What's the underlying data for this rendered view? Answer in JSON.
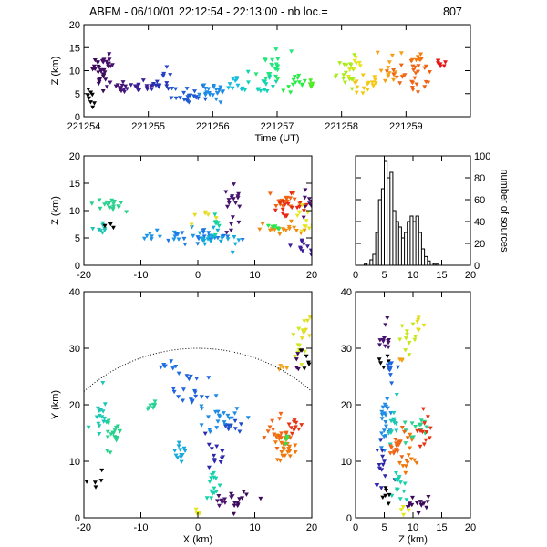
{
  "title_text": "ABFM - 06/10/01 22:12:54 - 22:13:00 - nb loc.=",
  "title_count": "807",
  "chart_data": [
    {
      "id": "time_height",
      "type": "scatter",
      "xlabel": "Time (UT)",
      "ylabel": "Z (km)",
      "xlim": [
        221254,
        221260
      ],
      "ylim": [
        0,
        20
      ],
      "xticks": [
        {
          "v": 221254,
          "label": "221254"
        },
        {
          "v": 221255,
          "label": "221255"
        },
        {
          "v": 221256,
          "label": "221256"
        },
        {
          "v": 221257,
          "label": "221257"
        },
        {
          "v": 221258,
          "label": "221258"
        },
        {
          "v": 221259,
          "label": "221259"
        }
      ],
      "yticks": [
        0,
        5,
        10,
        15,
        20
      ],
      "clusters": [
        {
          "x": 221254.25,
          "y": 10.0,
          "sx": 0.05,
          "sy": 1.8,
          "n": 24,
          "color": "#3c0a5a"
        },
        {
          "x": 221254.1,
          "y": 4.0,
          "sx": 0.03,
          "sy": 1.2,
          "n": 8,
          "color": "#000000"
        },
        {
          "x": 221254.35,
          "y": 11.5,
          "sx": 0.05,
          "sy": 1.0,
          "n": 14,
          "color": "#46106a"
        },
        {
          "x": 221254.55,
          "y": 6.5,
          "sx": 0.1,
          "sy": 0.8,
          "n": 14,
          "color": "#461478"
        },
        {
          "x": 221254.85,
          "y": 6.5,
          "sx": 0.12,
          "sy": 0.6,
          "n": 14,
          "color": "#3c1e96"
        },
        {
          "x": 221255.1,
          "y": 6.0,
          "sx": 0.08,
          "sy": 1.0,
          "n": 10,
          "color": "#2332b4"
        },
        {
          "x": 221255.25,
          "y": 9.5,
          "sx": 0.04,
          "sy": 0.6,
          "n": 5,
          "color": "#2840c8"
        },
        {
          "x": 221255.6,
          "y": 4.5,
          "sx": 0.15,
          "sy": 0.8,
          "n": 22,
          "color": "#1e5ad2"
        },
        {
          "x": 221255.95,
          "y": 5.5,
          "sx": 0.12,
          "sy": 1.0,
          "n": 22,
          "color": "#1e8ce6"
        },
        {
          "x": 221256.35,
          "y": 7.0,
          "sx": 0.1,
          "sy": 1.0,
          "n": 10,
          "color": "#14bedc"
        },
        {
          "x": 221256.75,
          "y": 7.5,
          "sx": 0.12,
          "sy": 1.2,
          "n": 16,
          "color": "#14d2b4"
        },
        {
          "x": 221256.95,
          "y": 10.5,
          "sx": 0.1,
          "sy": 1.5,
          "n": 18,
          "color": "#1ee678"
        },
        {
          "x": 221257.25,
          "y": 7.5,
          "sx": 0.15,
          "sy": 1.3,
          "n": 14,
          "color": "#28eb46"
        },
        {
          "x": 221257.55,
          "y": 7.0,
          "sx": 0.04,
          "sy": 0.5,
          "n": 5,
          "color": "#50eb28"
        },
        {
          "x": 221258.1,
          "y": 9.5,
          "sx": 0.1,
          "sy": 1.8,
          "n": 18,
          "color": "#aaeb1e"
        },
        {
          "x": 221258.25,
          "y": 11.0,
          "sx": 0.08,
          "sy": 1.0,
          "n": 8,
          "color": "#e6e61e"
        },
        {
          "x": 221258.4,
          "y": 7.0,
          "sx": 0.15,
          "sy": 1.0,
          "n": 16,
          "color": "#f5c814"
        },
        {
          "x": 221258.75,
          "y": 10.0,
          "sx": 0.1,
          "sy": 2.0,
          "n": 14,
          "color": "#f5a014"
        },
        {
          "x": 221259.1,
          "y": 9.0,
          "sx": 0.15,
          "sy": 2.2,
          "n": 30,
          "color": "#f06414"
        },
        {
          "x": 221259.2,
          "y": 12.5,
          "sx": 0.05,
          "sy": 0.6,
          "n": 6,
          "color": "#f5780a"
        },
        {
          "x": 221259.55,
          "y": 12.0,
          "sx": 0.08,
          "sy": 0.6,
          "n": 7,
          "color": "#e61414"
        }
      ]
    },
    {
      "id": "x_height",
      "type": "scatter",
      "xlabel": "",
      "ylabel": "Z (km)",
      "xlim": [
        -20,
        20
      ],
      "ylim": [
        0,
        20
      ],
      "xticks": [
        {
          "v": -20,
          "label": "-20"
        },
        {
          "v": -10,
          "label": "-10"
        },
        {
          "v": 0,
          "label": "0"
        },
        {
          "v": 10,
          "label": "10"
        },
        {
          "v": 20,
          "label": "20"
        }
      ],
      "yticks": [
        0,
        5,
        10,
        15,
        20
      ],
      "clusters": [
        {
          "x": -16.0,
          "y": 11.0,
          "sx": 1.5,
          "sy": 0.8,
          "n": 18,
          "color": "#28d28c"
        },
        {
          "x": -17.0,
          "y": 6.5,
          "sx": 1.0,
          "sy": 0.6,
          "n": 8,
          "color": "#1ec3b4"
        },
        {
          "x": -15.0,
          "y": 7.0,
          "sx": 0.6,
          "sy": 0.4,
          "n": 4,
          "color": "#000000"
        },
        {
          "x": -6.0,
          "y": 5.5,
          "sx": 3.0,
          "sy": 0.6,
          "n": 14,
          "color": "#1e96e6"
        },
        {
          "x": 0.0,
          "y": 5.0,
          "sx": 3.0,
          "sy": 0.6,
          "n": 24,
          "color": "#1e78e6"
        },
        {
          "x": 3.0,
          "y": 4.5,
          "sx": 2.0,
          "sy": 0.8,
          "n": 22,
          "color": "#14aadc"
        },
        {
          "x": 1.5,
          "y": 9.0,
          "sx": 0.8,
          "sy": 0.6,
          "n": 6,
          "color": "#e6dc1e"
        },
        {
          "x": 3.0,
          "y": 7.5,
          "sx": 0.5,
          "sy": 1.0,
          "n": 8,
          "color": "#14d2a0"
        },
        {
          "x": 6.0,
          "y": 10.5,
          "sx": 0.8,
          "sy": 2.0,
          "n": 18,
          "color": "#46146e"
        },
        {
          "x": 14.5,
          "y": 12.0,
          "sx": 1.5,
          "sy": 0.6,
          "n": 18,
          "color": "#f06414"
        },
        {
          "x": 16.5,
          "y": 10.0,
          "sx": 1.8,
          "sy": 1.2,
          "n": 18,
          "color": "#e62814"
        },
        {
          "x": 15.5,
          "y": 6.5,
          "sx": 2.0,
          "sy": 0.6,
          "n": 18,
          "color": "#f08c14"
        },
        {
          "x": 18.5,
          "y": 8.0,
          "sx": 0.8,
          "sy": 1.5,
          "n": 12,
          "color": "#e6e61e"
        },
        {
          "x": 18.5,
          "y": 3.5,
          "sx": 1.0,
          "sy": 0.6,
          "n": 10,
          "color": "#3c1e96"
        },
        {
          "x": 19.0,
          "y": 11.0,
          "sx": 0.5,
          "sy": 1.5,
          "n": 8,
          "color": "#46106a"
        },
        {
          "x": 13.0,
          "y": 6.5,
          "sx": 0.6,
          "sy": 0.6,
          "n": 6,
          "color": "#28e650"
        }
      ]
    },
    {
      "id": "height_histogram",
      "type": "bar",
      "xlabel": "",
      "ylabel": "number of sources",
      "xlim": [
        0,
        20
      ],
      "ylim": [
        0,
        100
      ],
      "bin_width": 0.5,
      "xticks": [
        {
          "v": 0,
          "label": "0"
        },
        {
          "v": 5,
          "label": "5"
        },
        {
          "v": 10,
          "label": "10"
        },
        {
          "v": 15,
          "label": "15"
        },
        {
          "v": 20,
          "label": "20"
        }
      ],
      "yticks": [
        0,
        20,
        40,
        60,
        80,
        100
      ],
      "bins_start": [
        1.5,
        2.0,
        2.5,
        3.0,
        3.5,
        4.0,
        4.5,
        5.0,
        5.5,
        6.0,
        6.5,
        7.0,
        7.5,
        8.0,
        8.5,
        9.0,
        9.5,
        10.0,
        10.5,
        11.0,
        11.5,
        12.0,
        12.5,
        13.0,
        13.5,
        14.0
      ],
      "counts": [
        1,
        2,
        5,
        10,
        30,
        60,
        70,
        95,
        80,
        85,
        50,
        40,
        35,
        25,
        30,
        40,
        45,
        40,
        45,
        30,
        15,
        8,
        4,
        2,
        1,
        1
      ]
    },
    {
      "id": "plan_view",
      "type": "scatter",
      "xlabel": "X (km)",
      "ylabel": "Y (km)",
      "xlim": [
        -20,
        20
      ],
      "ylim": [
        0,
        40
      ],
      "xticks": [
        {
          "v": -20,
          "label": "-20"
        },
        {
          "v": -10,
          "label": "-10"
        },
        {
          "v": 0,
          "label": "0"
        },
        {
          "v": 10,
          "label": "10"
        },
        {
          "v": 20,
          "label": "20"
        }
      ],
      "yticks": [
        0,
        10,
        20,
        30,
        40
      ],
      "range_arc_radius": 30,
      "clusters": [
        {
          "x": -17.0,
          "y": 18.0,
          "sx": 0.8,
          "sy": 2.0,
          "n": 16,
          "color": "#1ec8b4"
        },
        {
          "x": -15.0,
          "y": 15.0,
          "sx": 1.0,
          "sy": 1.5,
          "n": 18,
          "color": "#28d28c"
        },
        {
          "x": -8.0,
          "y": 19.5,
          "sx": 0.6,
          "sy": 0.6,
          "n": 8,
          "color": "#28d296"
        },
        {
          "x": -18.0,
          "y": 7.0,
          "sx": 1.0,
          "sy": 1.0,
          "n": 5,
          "color": "#000000"
        },
        {
          "x": -5.0,
          "y": 26.5,
          "sx": 0.8,
          "sy": 0.8,
          "n": 8,
          "color": "#1e6ee6"
        },
        {
          "x": -1.0,
          "y": 22.0,
          "sx": 1.5,
          "sy": 1.5,
          "n": 18,
          "color": "#1e64dc"
        },
        {
          "x": 4.0,
          "y": 18.0,
          "sx": 2.0,
          "sy": 1.2,
          "n": 22,
          "color": "#1e8ce6"
        },
        {
          "x": -3.0,
          "y": 13.0,
          "sx": 0.8,
          "sy": 1.5,
          "n": 12,
          "color": "#14aadc"
        },
        {
          "x": 6.0,
          "y": 16.0,
          "sx": 1.2,
          "sy": 1.0,
          "n": 10,
          "color": "#1e50c8"
        },
        {
          "x": 3.0,
          "y": 12.0,
          "sx": 1.0,
          "sy": 1.5,
          "n": 12,
          "color": "#2d28aa"
        },
        {
          "x": 2.5,
          "y": 6.0,
          "sx": 0.6,
          "sy": 1.5,
          "n": 14,
          "color": "#14d2aa"
        },
        {
          "x": 4.0,
          "y": 3.0,
          "sx": 1.0,
          "sy": 1.0,
          "n": 10,
          "color": "#46146e"
        },
        {
          "x": 7.0,
          "y": 3.0,
          "sx": 1.2,
          "sy": 1.0,
          "n": 12,
          "color": "#3c0a5a"
        },
        {
          "x": 0.0,
          "y": 0.8,
          "sx": 0.3,
          "sy": 0.5,
          "n": 4,
          "color": "#e6e61e"
        },
        {
          "x": 14.5,
          "y": 15.0,
          "sx": 1.5,
          "sy": 1.5,
          "n": 20,
          "color": "#f06414"
        },
        {
          "x": 15.0,
          "y": 12.0,
          "sx": 1.5,
          "sy": 1.5,
          "n": 22,
          "color": "#f0780a"
        },
        {
          "x": 17.0,
          "y": 16.0,
          "sx": 0.8,
          "sy": 1.0,
          "n": 10,
          "color": "#e63214"
        },
        {
          "x": 18.0,
          "y": 31.0,
          "sx": 0.8,
          "sy": 2.5,
          "n": 14,
          "color": "#d2e61e"
        },
        {
          "x": 19.0,
          "y": 34.0,
          "sx": 0.5,
          "sy": 1.5,
          "n": 6,
          "color": "#e6dc1e"
        },
        {
          "x": 15.0,
          "y": 26.5,
          "sx": 0.4,
          "sy": 0.4,
          "n": 4,
          "color": "#f0a014"
        },
        {
          "x": 17.5,
          "y": 28.0,
          "sx": 0.5,
          "sy": 1.0,
          "n": 5,
          "color": "#3c0a5a"
        },
        {
          "x": 19.0,
          "y": 27.5,
          "sx": 0.6,
          "sy": 1.0,
          "n": 5,
          "color": "#000000"
        },
        {
          "x": 15.5,
          "y": 13.5,
          "sx": 0.5,
          "sy": 0.5,
          "n": 4,
          "color": "#28e650"
        }
      ]
    },
    {
      "id": "height_y",
      "type": "scatter",
      "xlabel": "Z (km)",
      "ylabel": "",
      "xlim": [
        0,
        20
      ],
      "ylim": [
        0,
        40
      ],
      "xticks": [
        {
          "v": 0,
          "label": "0"
        },
        {
          "v": 5,
          "label": "5"
        },
        {
          "v": 10,
          "label": "10"
        },
        {
          "v": 15,
          "label": "15"
        },
        {
          "v": 20,
          "label": "20"
        }
      ],
      "yticks": [
        0,
        10,
        20,
        30,
        40
      ],
      "clusters": [
        {
          "x": 5.0,
          "y": 31.5,
          "sx": 0.6,
          "sy": 1.5,
          "n": 12,
          "color": "#46146e"
        },
        {
          "x": 4.5,
          "y": 27.5,
          "sx": 0.5,
          "sy": 0.5,
          "n": 5,
          "color": "#000000"
        },
        {
          "x": 6.0,
          "y": 26.0,
          "sx": 0.5,
          "sy": 1.0,
          "n": 10,
          "color": "#1e64dc"
        },
        {
          "x": 9.5,
          "y": 31.0,
          "sx": 0.8,
          "sy": 2.5,
          "n": 12,
          "color": "#c8e61e"
        },
        {
          "x": 11.0,
          "y": 34.0,
          "sx": 0.5,
          "sy": 1.0,
          "n": 6,
          "color": "#e6dc1e"
        },
        {
          "x": 8.0,
          "y": 28.0,
          "sx": 0.4,
          "sy": 0.6,
          "n": 4,
          "color": "#f0a014"
        },
        {
          "x": 5.0,
          "y": 17.5,
          "sx": 0.6,
          "sy": 2.5,
          "n": 22,
          "color": "#1e8ce6"
        },
        {
          "x": 6.5,
          "y": 17.0,
          "sx": 0.6,
          "sy": 2.5,
          "n": 14,
          "color": "#1ec8b4"
        },
        {
          "x": 10.5,
          "y": 15.0,
          "sx": 0.8,
          "sy": 1.5,
          "n": 16,
          "color": "#28d28c"
        },
        {
          "x": 7.5,
          "y": 12.5,
          "sx": 0.8,
          "sy": 1.5,
          "n": 22,
          "color": "#f06414"
        },
        {
          "x": 12.0,
          "y": 15.0,
          "sx": 0.6,
          "sy": 2.0,
          "n": 12,
          "color": "#e63214"
        },
        {
          "x": 9.0,
          "y": 11.0,
          "sx": 0.8,
          "sy": 2.0,
          "n": 12,
          "color": "#f0780a"
        },
        {
          "x": 4.5,
          "y": 8.0,
          "sx": 0.6,
          "sy": 2.5,
          "n": 14,
          "color": "#2d28aa"
        },
        {
          "x": 7.5,
          "y": 5.0,
          "sx": 0.8,
          "sy": 1.5,
          "n": 14,
          "color": "#14d2aa"
        },
        {
          "x": 11.0,
          "y": 2.5,
          "sx": 1.2,
          "sy": 1.0,
          "n": 14,
          "color": "#3c0a5a"
        },
        {
          "x": 8.0,
          "y": 0.8,
          "sx": 0.4,
          "sy": 0.5,
          "n": 4,
          "color": "#e6e61e"
        },
        {
          "x": 5.0,
          "y": 4.0,
          "sx": 0.5,
          "sy": 1.0,
          "n": 6,
          "color": "#000000"
        }
      ]
    }
  ]
}
